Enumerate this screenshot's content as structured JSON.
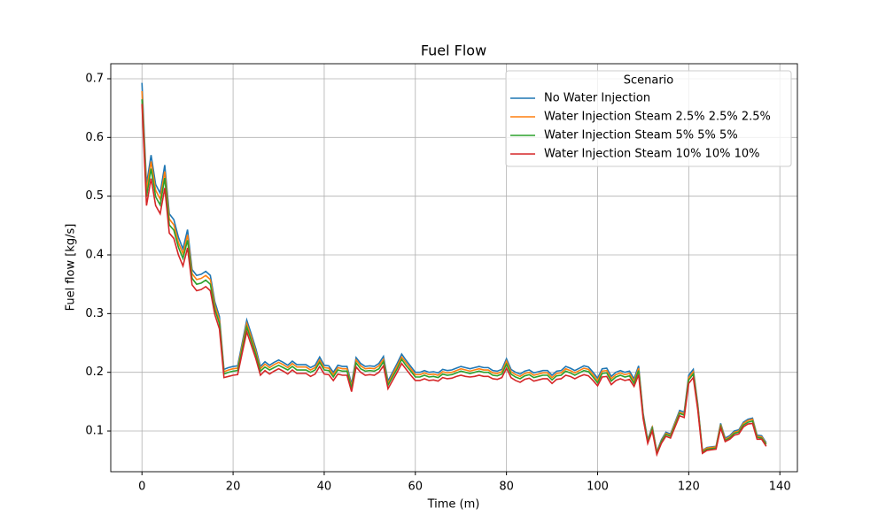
{
  "chart_data": {
    "type": "line",
    "title": "Fuel Flow",
    "xlabel": "Time (m)",
    "ylabel": "Fuel flow [kg/s]",
    "x": [
      0,
      1,
      2,
      3,
      4,
      5,
      6,
      7,
      8,
      9,
      10,
      11,
      12,
      13,
      14,
      15,
      16,
      17,
      18,
      19,
      20,
      21,
      22,
      23,
      24,
      25,
      26,
      27,
      28,
      29,
      30,
      31,
      32,
      33,
      34,
      35,
      36,
      37,
      38,
      39,
      40,
      41,
      42,
      43,
      44,
      45,
      46,
      47,
      48,
      49,
      50,
      51,
      52,
      53,
      54,
      55,
      56,
      57,
      58,
      59,
      60,
      61,
      62,
      63,
      64,
      65,
      66,
      67,
      68,
      69,
      70,
      71,
      72,
      73,
      74,
      75,
      76,
      77,
      78,
      79,
      80,
      81,
      82,
      83,
      84,
      85,
      86,
      87,
      88,
      89,
      90,
      91,
      92,
      93,
      94,
      95,
      96,
      97,
      98,
      99,
      100,
      101,
      102,
      103,
      104,
      105,
      106,
      107,
      108,
      109,
      110,
      111,
      112,
      113,
      114,
      115,
      116,
      117,
      118,
      119,
      120,
      121,
      122,
      123,
      124,
      125,
      126,
      127,
      128,
      129,
      130,
      131,
      132,
      133,
      134,
      135,
      136,
      137
    ],
    "series": [
      {
        "name": "No Water Injection",
        "color": "#1f77b4",
        "values": [
          0.693,
          0.52,
          0.57,
          0.52,
          0.505,
          0.553,
          0.47,
          0.46,
          0.43,
          0.41,
          0.443,
          0.375,
          0.365,
          0.367,
          0.372,
          0.365,
          0.32,
          0.295,
          0.205,
          0.208,
          0.21,
          0.211,
          0.25,
          0.289,
          0.265,
          0.24,
          0.21,
          0.218,
          0.212,
          0.217,
          0.221,
          0.217,
          0.212,
          0.219,
          0.213,
          0.213,
          0.213,
          0.208,
          0.212,
          0.226,
          0.212,
          0.211,
          0.2,
          0.212,
          0.21,
          0.21,
          0.18,
          0.225,
          0.215,
          0.21,
          0.211,
          0.21,
          0.215,
          0.227,
          0.185,
          0.2,
          0.215,
          0.231,
          0.22,
          0.21,
          0.2,
          0.2,
          0.203,
          0.2,
          0.201,
          0.199,
          0.205,
          0.203,
          0.204,
          0.207,
          0.21,
          0.208,
          0.206,
          0.208,
          0.21,
          0.208,
          0.208,
          0.203,
          0.202,
          0.205,
          0.223,
          0.205,
          0.2,
          0.197,
          0.202,
          0.204,
          0.199,
          0.201,
          0.203,
          0.203,
          0.195,
          0.202,
          0.203,
          0.21,
          0.207,
          0.203,
          0.207,
          0.211,
          0.209,
          0.2,
          0.19,
          0.206,
          0.207,
          0.193,
          0.2,
          0.203,
          0.2,
          0.202,
          0.189,
          0.211,
          0.13,
          0.085,
          0.108,
          0.065,
          0.085,
          0.098,
          0.095,
          0.115,
          0.135,
          0.132,
          0.195,
          0.205,
          0.145,
          0.067,
          0.072,
          0.073,
          0.074,
          0.113,
          0.088,
          0.092,
          0.1,
          0.102,
          0.115,
          0.12,
          0.122,
          0.093,
          0.092,
          0.08
        ]
      },
      {
        "name": "Water Injection Steam 2.5% 2.5% 2.5%",
        "color": "#ff7f0e",
        "values": [
          0.679,
          0.51,
          0.559,
          0.51,
          0.495,
          0.542,
          0.461,
          0.451,
          0.421,
          0.402,
          0.434,
          0.368,
          0.358,
          0.36,
          0.365,
          0.358,
          0.314,
          0.289,
          0.201,
          0.204,
          0.206,
          0.207,
          0.245,
          0.283,
          0.26,
          0.235,
          0.206,
          0.214,
          0.208,
          0.213,
          0.217,
          0.213,
          0.208,
          0.215,
          0.209,
          0.209,
          0.209,
          0.204,
          0.208,
          0.221,
          0.208,
          0.207,
          0.196,
          0.208,
          0.206,
          0.206,
          0.176,
          0.221,
          0.211,
          0.206,
          0.207,
          0.206,
          0.211,
          0.222,
          0.181,
          0.196,
          0.211,
          0.226,
          0.216,
          0.206,
          0.196,
          0.196,
          0.199,
          0.196,
          0.197,
          0.195,
          0.201,
          0.199,
          0.2,
          0.203,
          0.206,
          0.204,
          0.202,
          0.204,
          0.206,
          0.204,
          0.204,
          0.199,
          0.198,
          0.201,
          0.219,
          0.201,
          0.196,
          0.193,
          0.198,
          0.2,
          0.195,
          0.197,
          0.199,
          0.199,
          0.191,
          0.198,
          0.199,
          0.206,
          0.203,
          0.199,
          0.203,
          0.207,
          0.205,
          0.196,
          0.186,
          0.202,
          0.203,
          0.189,
          0.196,
          0.199,
          0.196,
          0.198,
          0.185,
          0.207,
          0.127,
          0.083,
          0.106,
          0.064,
          0.083,
          0.096,
          0.093,
          0.113,
          0.132,
          0.129,
          0.191,
          0.201,
          0.142,
          0.066,
          0.071,
          0.072,
          0.073,
          0.111,
          0.086,
          0.09,
          0.098,
          0.1,
          0.113,
          0.118,
          0.12,
          0.091,
          0.09,
          0.078
        ]
      },
      {
        "name": "Water Injection Steam 5% 5% 5%",
        "color": "#2ca02c",
        "values": [
          0.665,
          0.499,
          0.547,
          0.499,
          0.485,
          0.531,
          0.451,
          0.442,
          0.413,
          0.394,
          0.425,
          0.36,
          0.35,
          0.352,
          0.357,
          0.35,
          0.307,
          0.283,
          0.197,
          0.2,
          0.202,
          0.203,
          0.24,
          0.277,
          0.254,
          0.23,
          0.202,
          0.209,
          0.204,
          0.208,
          0.212,
          0.208,
          0.204,
          0.21,
          0.204,
          0.204,
          0.204,
          0.2,
          0.204,
          0.217,
          0.204,
          0.203,
          0.192,
          0.204,
          0.202,
          0.202,
          0.173,
          0.216,
          0.206,
          0.202,
          0.203,
          0.202,
          0.206,
          0.218,
          0.178,
          0.192,
          0.206,
          0.222,
          0.211,
          0.202,
          0.192,
          0.192,
          0.195,
          0.192,
          0.193,
          0.191,
          0.197,
          0.195,
          0.196,
          0.199,
          0.202,
          0.2,
          0.198,
          0.2,
          0.202,
          0.2,
          0.2,
          0.195,
          0.194,
          0.197,
          0.214,
          0.197,
          0.192,
          0.189,
          0.194,
          0.196,
          0.191,
          0.193,
          0.195,
          0.195,
          0.187,
          0.194,
          0.195,
          0.202,
          0.199,
          0.195,
          0.199,
          0.203,
          0.201,
          0.192,
          0.182,
          0.198,
          0.199,
          0.185,
          0.192,
          0.195,
          0.192,
          0.194,
          0.181,
          0.203,
          0.125,
          0.082,
          0.104,
          0.062,
          0.082,
          0.094,
          0.091,
          0.11,
          0.13,
          0.127,
          0.187,
          0.197,
          0.139,
          0.064,
          0.069,
          0.07,
          0.071,
          0.108,
          0.084,
          0.088,
          0.096,
          0.098,
          0.11,
          0.115,
          0.117,
          0.089,
          0.088,
          0.077
        ]
      },
      {
        "name": "Water Injection Steam 10% 10% 10%",
        "color": "#d62728",
        "values": [
          0.657,
          0.484,
          0.53,
          0.484,
          0.47,
          0.514,
          0.437,
          0.428,
          0.4,
          0.381,
          0.412,
          0.349,
          0.339,
          0.341,
          0.346,
          0.339,
          0.298,
          0.274,
          0.191,
          0.193,
          0.195,
          0.196,
          0.233,
          0.269,
          0.246,
          0.223,
          0.195,
          0.203,
          0.197,
          0.202,
          0.206,
          0.202,
          0.197,
          0.204,
          0.198,
          0.198,
          0.198,
          0.193,
          0.197,
          0.21,
          0.197,
          0.196,
          0.186,
          0.197,
          0.195,
          0.195,
          0.167,
          0.209,
          0.2,
          0.195,
          0.196,
          0.195,
          0.2,
          0.211,
          0.172,
          0.186,
          0.2,
          0.215,
          0.205,
          0.195,
          0.186,
          0.186,
          0.189,
          0.186,
          0.187,
          0.185,
          0.191,
          0.189,
          0.19,
          0.193,
          0.195,
          0.193,
          0.192,
          0.193,
          0.195,
          0.193,
          0.193,
          0.189,
          0.188,
          0.191,
          0.207,
          0.191,
          0.186,
          0.183,
          0.188,
          0.19,
          0.185,
          0.187,
          0.189,
          0.189,
          0.181,
          0.188,
          0.189,
          0.195,
          0.193,
          0.189,
          0.193,
          0.196,
          0.194,
          0.186,
          0.177,
          0.192,
          0.193,
          0.179,
          0.186,
          0.189,
          0.186,
          0.188,
          0.176,
          0.196,
          0.121,
          0.079,
          0.1,
          0.06,
          0.079,
          0.091,
          0.088,
          0.107,
          0.126,
          0.123,
          0.181,
          0.191,
          0.135,
          0.062,
          0.067,
          0.068,
          0.069,
          0.105,
          0.082,
          0.086,
          0.093,
          0.095,
          0.107,
          0.112,
          0.113,
          0.086,
          0.086,
          0.074
        ]
      }
    ],
    "xlim": [
      -6.85,
      143.85
    ],
    "xticks": [
      0,
      20,
      40,
      60,
      80,
      100,
      120,
      140
    ],
    "ylim": [
      0.0307,
      0.7256
    ],
    "yticks": [
      0.1,
      0.2,
      0.3,
      0.4,
      0.5,
      0.6,
      0.7
    ],
    "grid": true,
    "legend_title": "Scenario",
    "legend_loc": "upper right"
  }
}
